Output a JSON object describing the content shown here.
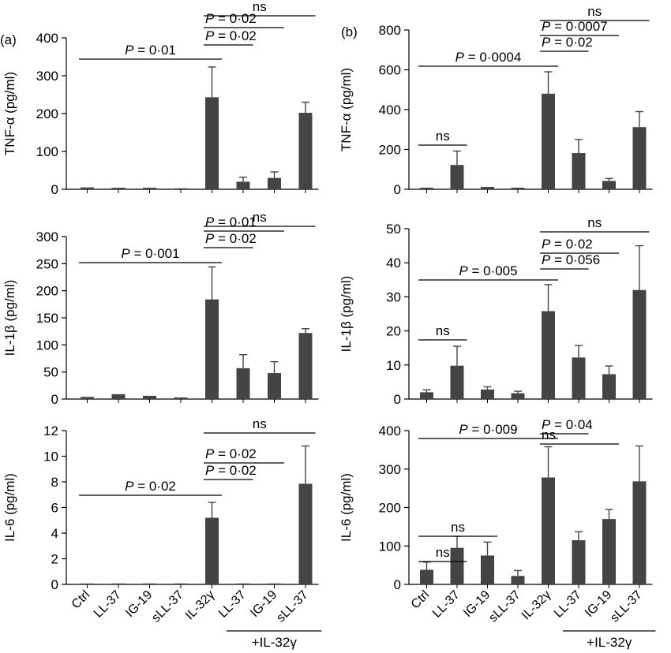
{
  "figure": {
    "groups": [
      "Ctrl",
      "LL-37",
      "IG-19",
      "sLL-37",
      "IL-32γ",
      "LL-37",
      "IG-19",
      "sLL-37"
    ],
    "treatment_label": "+IL-32γ",
    "colors": {
      "bar": "#444444",
      "axis": "#000000"
    }
  },
  "chart_data": [
    {
      "type": "bar",
      "panel_label": "(a)",
      "ylabel": "TNF-α (pg/ml)",
      "ylim": [
        0,
        400
      ],
      "yticks": [
        0,
        100,
        200,
        300,
        400
      ],
      "values": [
        5,
        4,
        4,
        2,
        243,
        20,
        30,
        202
      ],
      "errors": [
        0,
        0,
        0,
        0,
        80,
        12,
        16,
        28
      ],
      "annotations": [
        {
          "text": "P = 0·01",
          "from": 0,
          "to": 4
        },
        {
          "text": "P = 0·02",
          "from": 4,
          "to": 5
        },
        {
          "text": "P = 0·02",
          "from": 4,
          "to": 6
        },
        {
          "text": "ns",
          "from": 4,
          "to": 7
        }
      ]
    },
    {
      "type": "bar",
      "panel_label": "(b)",
      "ylabel": "TNF-α (pg/ml)",
      "ylim": [
        0,
        800
      ],
      "yticks": [
        0,
        200,
        400,
        600,
        800
      ],
      "values": [
        8,
        122,
        12,
        8,
        480,
        182,
        42,
        312
      ],
      "errors": [
        0,
        70,
        0,
        0,
        110,
        68,
        12,
        78
      ],
      "annotations": [
        {
          "text": "ns",
          "from": 0,
          "to": 1
        },
        {
          "text": "P = 0·0004",
          "from": 0,
          "to": 4
        },
        {
          "text": "P = 0·02",
          "from": 4,
          "to": 5
        },
        {
          "text": "P = 0·0007",
          "from": 4,
          "to": 6
        },
        {
          "text": "ns",
          "from": 4,
          "to": 7
        }
      ]
    },
    {
      "type": "bar",
      "panel_label": "",
      "ylabel": "IL-1β (pg/ml)",
      "ylim": [
        0,
        300
      ],
      "yticks": [
        0,
        50,
        100,
        150,
        200,
        250,
        300
      ],
      "values": [
        4,
        9,
        6,
        3,
        184,
        57,
        48,
        122
      ],
      "errors": [
        0,
        0,
        0,
        0,
        60,
        25,
        21,
        8
      ],
      "annotations": [
        {
          "text": "P = 0·001",
          "from": 0,
          "to": 4
        },
        {
          "text": "P = 0·02",
          "from": 4,
          "to": 5
        },
        {
          "text": "P = 0·01",
          "from": 4,
          "to": 6
        },
        {
          "text": "ns",
          "from": 4,
          "to": 7
        }
      ]
    },
    {
      "type": "bar",
      "panel_label": "",
      "ylabel": "IL-1β (pg/ml)",
      "ylim": [
        0,
        50
      ],
      "yticks": [
        0,
        10,
        20,
        30,
        40,
        50
      ],
      "values": [
        2,
        9.8,
        2.8,
        1.7,
        25.8,
        12.2,
        7.3,
        32
      ],
      "errors": [
        0.7,
        5.7,
        0.8,
        0.6,
        7.8,
        3.5,
        2.4,
        13
      ],
      "annotations": [
        {
          "text": "ns",
          "from": 0,
          "to": 1
        },
        {
          "text": "P = 0·005",
          "from": 0,
          "to": 4
        },
        {
          "text": "P = 0·056",
          "from": 4,
          "to": 5
        },
        {
          "text": "P = 0·02",
          "from": 4,
          "to": 6
        },
        {
          "text": "ns",
          "from": 4,
          "to": 7
        }
      ]
    },
    {
      "type": "bar",
      "panel_label": "",
      "ylabel": "IL-6 (pg/ml)",
      "ylim": [
        0,
        12
      ],
      "yticks": [
        0,
        2,
        4,
        6,
        8,
        10,
        12
      ],
      "values": [
        0.03,
        0.03,
        0.03,
        0.03,
        5.2,
        0.07,
        0.03,
        7.85
      ],
      "errors": [
        0,
        0,
        0,
        0,
        1.2,
        0,
        0,
        2.95
      ],
      "annotations": [
        {
          "text": "P = 0·02",
          "from": 0,
          "to": 4
        },
        {
          "text": "P = 0·02",
          "from": 4,
          "to": 5
        },
        {
          "text": "P = 0·02",
          "from": 4,
          "to": 6
        },
        {
          "text": "ns",
          "from": 4,
          "to": 7
        }
      ]
    },
    {
      "type": "bar",
      "panel_label": "",
      "ylabel": "IL-6 (pg/ml)",
      "ylim": [
        0,
        400
      ],
      "yticks": [
        0,
        100,
        200,
        300,
        400
      ],
      "values": [
        38,
        95,
        75,
        22,
        278,
        115,
        170,
        268
      ],
      "errors": [
        20,
        30,
        35,
        14,
        80,
        22,
        25,
        92
      ],
      "annotations": [
        {
          "text": "ns",
          "from": 0,
          "to": 1
        },
        {
          "text": "ns",
          "from": 0,
          "to": 2
        },
        {
          "text": "P = 0·009",
          "from": 0,
          "to": 4
        },
        {
          "text": "P = 0·04",
          "from": 4,
          "to": 5
        },
        {
          "text": "ns",
          "from": 4,
          "to": 6
        }
      ]
    }
  ]
}
